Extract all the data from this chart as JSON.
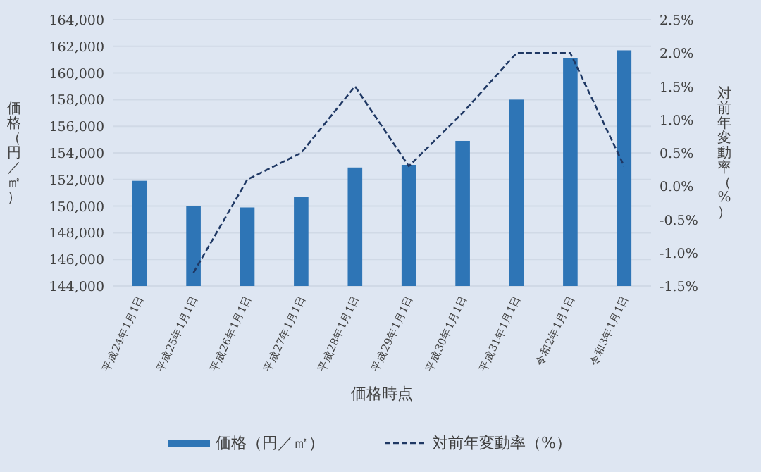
{
  "chart_data": {
    "type": "bar",
    "xlabel": "価格時点",
    "ylabel": "価格（円／㎡）",
    "y2label": "対前年変動率（%）",
    "categories": [
      "平成24年1月1日",
      "平成25年1月1日",
      "平成26年1月1日",
      "平成27年1月1日",
      "平成28年1月1日",
      "平成29年1月1日",
      "平成30年1月1日",
      "平成31年1月1日",
      "令和2年1月1日",
      "令和3年1月1日"
    ],
    "series": [
      {
        "name": "価格（円／㎡）",
        "color": "#2e75b6",
        "values": [
          151900,
          150000,
          149900,
          150700,
          152900,
          153100,
          154900,
          158000,
          161100,
          161700
        ]
      },
      {
        "name": "対前年変動率（%）",
        "type": "line",
        "axis": "y2",
        "color": "#1f3864",
        "line_style": "dashed",
        "marker": "none",
        "values": [
          null,
          -1.3,
          0.1,
          0.5,
          1.5,
          0.3,
          1.1,
          2.0,
          2.0,
          0.3
        ]
      }
    ],
    "ylim": [
      144000,
      164000
    ],
    "yticks": [
      {
        "value": 144000,
        "label": "144,000"
      },
      {
        "value": 146000,
        "label": "146,000"
      },
      {
        "value": 148000,
        "label": "148,000"
      },
      {
        "value": 150000,
        "label": "150,000"
      },
      {
        "value": 152000,
        "label": "152,000"
      },
      {
        "value": 154000,
        "label": "154,000"
      },
      {
        "value": 156000,
        "label": "156,000"
      },
      {
        "value": 158000,
        "label": "158,000"
      },
      {
        "value": 160000,
        "label": "160,000"
      },
      {
        "value": 162000,
        "label": "162,000"
      },
      {
        "value": 164000,
        "label": "164,000"
      }
    ],
    "y2lim": [
      -1.5,
      2.5
    ],
    "y2ticks": [
      {
        "value": -1.5,
        "label": "-1.5%"
      },
      {
        "value": -1.0,
        "label": "-1.0%"
      },
      {
        "value": -0.5,
        "label": "-0.5%"
      },
      {
        "value": 0,
        "label": "0.0%"
      },
      {
        "value": 0.5,
        "label": "0.5%"
      },
      {
        "value": 1.0,
        "label": "1.0%"
      },
      {
        "value": 1.5,
        "label": "1.5%"
      },
      {
        "value": 2.0,
        "label": "2.0%"
      },
      {
        "value": 2.5,
        "label": "2.5%"
      }
    ],
    "grid": "y",
    "legend": "bottom"
  }
}
